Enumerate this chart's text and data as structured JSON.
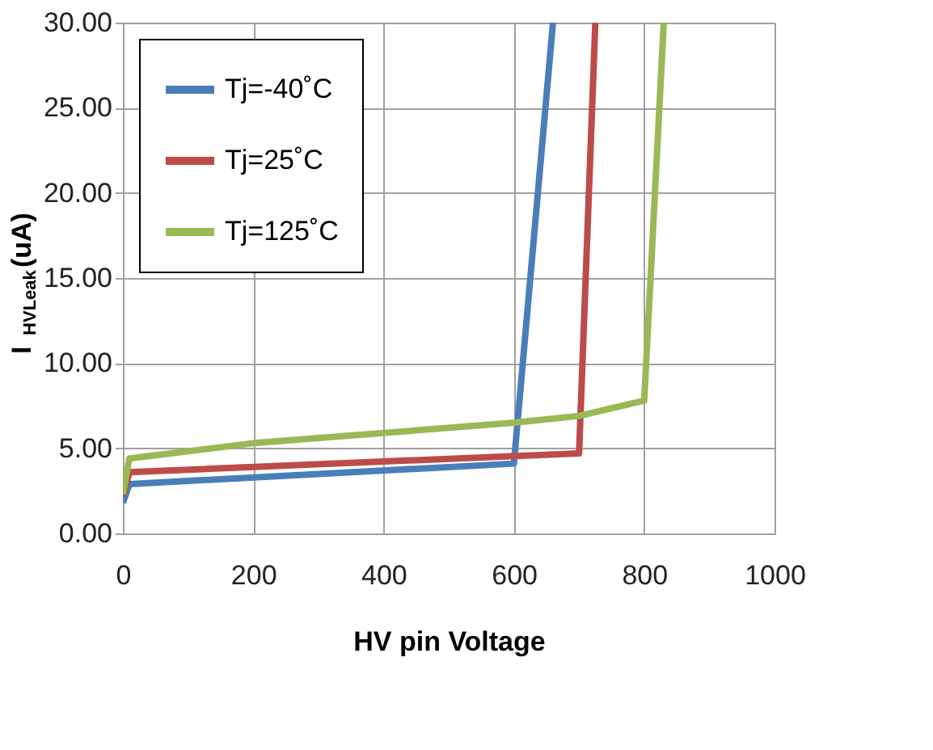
{
  "chart_data": {
    "type": "line",
    "xlabel": "HV pin Voltage",
    "ylabel": "I$_{HVLeak}$(uA)",
    "xlim": [
      0,
      1000
    ],
    "xticks": [
      0,
      200,
      400,
      600,
      800,
      1000
    ],
    "ylim": [
      0,
      30
    ],
    "yticks": [
      {
        "value": 0,
        "label": "0.00"
      },
      {
        "value": 5,
        "label": "5.00"
      },
      {
        "value": 10,
        "label": "10.00"
      },
      {
        "value": 15,
        "label": "15.00"
      },
      {
        "value": 20,
        "label": "20.00"
      },
      {
        "value": 25,
        "label": "25.00"
      },
      {
        "value": 30,
        "label": "30.00"
      }
    ],
    "grid": true,
    "legend": "top left",
    "marker": "none",
    "line_style": "solid",
    "series": [
      {
        "name": "Tj=-40˚C",
        "color": "#4a7ebb",
        "x": [
          0,
          10,
          600,
          660
        ],
        "values": [
          1.8,
          2.9,
          4.1,
          30
        ]
      },
      {
        "name": "Tj=25˚C",
        "color": "#be4b48",
        "x": [
          0,
          10,
          700,
          725
        ],
        "values": [
          2.2,
          3.6,
          4.7,
          30
        ]
      },
      {
        "name": "Tj=125˚C",
        "color": "#98b954",
        "x": [
          0,
          10,
          200,
          600,
          700,
          800,
          830
        ],
        "values": [
          2.3,
          4.4,
          5.3,
          6.5,
          6.9,
          7.8,
          30
        ]
      }
    ]
  }
}
